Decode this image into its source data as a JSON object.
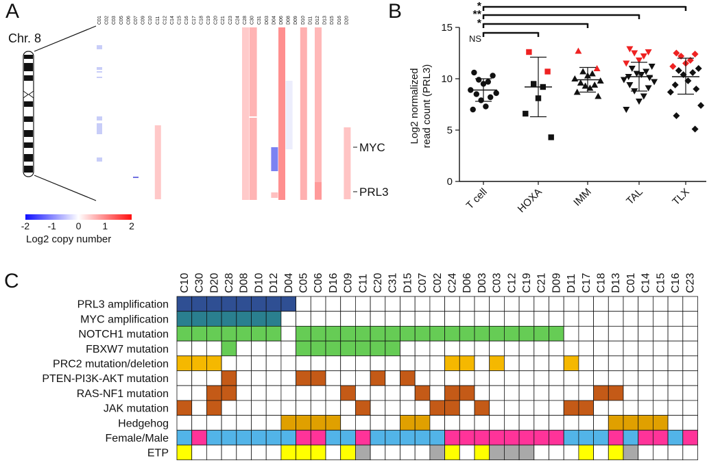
{
  "colors": {
    "neg": "#2b2bff",
    "pos": "#ff2020",
    "amp_prl3": "#2f4f93",
    "amp_myc": "#2a7f8f",
    "notch": "#66cc55",
    "fbxw7": "#66cc55",
    "prc2": "#f5b800",
    "pten": "#c45a17",
    "ras": "#c45a17",
    "jak": "#c45a17",
    "hedgehog": "#e0a000",
    "female": "#ff3399",
    "male": "#52b4e8",
    "etp_yes": "#ffff00",
    "etp_gray": "#a9a9a9",
    "red_point": "#ee2222"
  },
  "panelA": {
    "panel_letter": "A",
    "chromosome_label": "Chr. 8",
    "gene_labels": [
      "MYC",
      "PRL3"
    ],
    "samples": [
      "C01",
      "C02",
      "C03",
      "C05",
      "C06",
      "C07",
      "C09",
      "C10",
      "C11",
      "C12",
      "C14",
      "C15",
      "C16",
      "C17",
      "C18",
      "C19",
      "C20",
      "C21",
      "C23",
      "C24",
      "C28",
      "C30",
      "C31",
      "D03",
      "D04",
      "D06",
      "D08",
      "D09",
      "D10",
      "D11",
      "D12",
      "D13",
      "D15",
      "D16",
      "D20"
    ],
    "legend": {
      "ticks": [
        "-2",
        "-1",
        "0",
        "1",
        "2"
      ],
      "title": "Log2 copy number"
    }
  },
  "panelB": {
    "panel_letter": "B",
    "chart_data": {
      "type": "scatter",
      "ylabel_line1": "Log2 normalized",
      "ylabel_line2": "read count (PRL3)",
      "ylim": [
        0,
        15
      ],
      "yticks": [
        "0",
        "5",
        "10",
        "15"
      ],
      "categories": [
        "T cell",
        "HOXA",
        "IMM",
        "TAL",
        "TLX"
      ],
      "markers": [
        "circle",
        "square",
        "triangle-up",
        "triangle-down",
        "diamond"
      ],
      "means": [
        8.9,
        9.2,
        9.9,
        10.2,
        10.2
      ],
      "sd_low": [
        7.8,
        6.3,
        8.7,
        8.8,
        8.5
      ],
      "sd_high": [
        10.0,
        12.1,
        11.1,
        11.6,
        12.0
      ],
      "points": [
        [
          {
            "y": 10.6
          },
          {
            "y": 10.3
          },
          {
            "y": 9.9
          },
          {
            "y": 9.7
          },
          {
            "y": 9.5
          },
          {
            "y": 8.9
          },
          {
            "y": 8.6
          },
          {
            "y": 8.5
          },
          {
            "y": 8.2
          },
          {
            "y": 7.9
          },
          {
            "y": 7.3
          },
          {
            "y": 7.0
          }
        ],
        [
          {
            "y": 12.6,
            "red": true
          },
          {
            "y": 10.7,
            "red": true
          },
          {
            "y": 9.5
          },
          {
            "y": 9.2
          },
          {
            "y": 8.1
          },
          {
            "y": 6.6
          },
          {
            "y": 4.3
          }
        ],
        [
          {
            "y": 12.7,
            "red": true
          },
          {
            "y": 11.0,
            "red": true
          },
          {
            "y": 10.7
          },
          {
            "y": 10.5
          },
          {
            "y": 10.3
          },
          {
            "y": 10.0
          },
          {
            "y": 9.8
          },
          {
            "y": 9.6
          },
          {
            "y": 9.4
          },
          {
            "y": 9.3
          },
          {
            "y": 9.1
          },
          {
            "y": 8.7
          },
          {
            "y": 8.3
          }
        ],
        [
          {
            "y": 12.9,
            "red": true
          },
          {
            "y": 12.6,
            "red": true
          },
          {
            "y": 12.5,
            "red": true
          },
          {
            "y": 12.2,
            "red": true
          },
          {
            "y": 11.8,
            "red": true
          },
          {
            "y": 11.5,
            "red": true
          },
          {
            "y": 11.2
          },
          {
            "y": 11.0
          },
          {
            "y": 10.7
          },
          {
            "y": 10.5
          },
          {
            "y": 10.4
          },
          {
            "y": 10.2
          },
          {
            "y": 10.1
          },
          {
            "y": 9.9
          },
          {
            "y": 9.7
          },
          {
            "y": 9.4
          },
          {
            "y": 9.1
          },
          {
            "y": 8.8
          },
          {
            "y": 8.3
          },
          {
            "y": 7.8
          },
          {
            "y": 7.0
          }
        ],
        [
          {
            "y": 12.5,
            "red": true
          },
          {
            "y": 12.4,
            "red": true
          },
          {
            "y": 12.2,
            "red": true
          },
          {
            "y": 11.8,
            "red": true
          },
          {
            "y": 11.5,
            "red": true
          },
          {
            "y": 11.2,
            "red": true
          },
          {
            "y": 11.0
          },
          {
            "y": 10.8
          },
          {
            "y": 10.6
          },
          {
            "y": 10.4
          },
          {
            "y": 9.8
          },
          {
            "y": 9.4
          },
          {
            "y": 9.0
          },
          {
            "y": 8.7
          },
          {
            "y": 7.4
          },
          {
            "y": 6.4
          },
          {
            "y": 5.1
          }
        ]
      ],
      "significance": [
        {
          "to": "TLX",
          "label": "*"
        },
        {
          "to": "TAL",
          "label": "**"
        },
        {
          "to": "IMM",
          "label": "*"
        },
        {
          "to": "HOXA",
          "label": "NS"
        }
      ]
    }
  },
  "panelC": {
    "panel_letter": "C",
    "chart_data": {
      "type": "heatmap",
      "columns": [
        "C10",
        "C30",
        "D20",
        "C28",
        "D08",
        "D10",
        "D12",
        "D04",
        "C05",
        "C06",
        "D16",
        "C09",
        "C11",
        "C20",
        "C31",
        "D15",
        "C07",
        "C02",
        "C24",
        "D06",
        "D03",
        "C03",
        "C12",
        "C19",
        "C21",
        "D09",
        "D11",
        "C17",
        "C18",
        "D13",
        "C01",
        "C14",
        "C15",
        "C16",
        "C23"
      ],
      "rows": [
        {
          "label": "PRL3 amplification",
          "color": "amp_prl3",
          "cells": [
            1,
            1,
            1,
            1,
            1,
            1,
            1,
            1,
            0,
            0,
            0,
            0,
            0,
            0,
            0,
            0,
            0,
            0,
            0,
            0,
            0,
            0,
            0,
            0,
            0,
            0,
            0,
            0,
            0,
            0,
            0,
            0,
            0,
            0,
            0
          ]
        },
        {
          "label": "MYC amplification",
          "color": "amp_myc",
          "cells": [
            1,
            1,
            1,
            1,
            1,
            1,
            1,
            0,
            0,
            0,
            0,
            0,
            0,
            0,
            0,
            0,
            0,
            0,
            0,
            0,
            0,
            0,
            0,
            0,
            0,
            0,
            0,
            0,
            0,
            0,
            0,
            0,
            0,
            0,
            0
          ]
        },
        {
          "label": "NOTCH1 mutation",
          "color": "notch",
          "cells": [
            1,
            1,
            1,
            1,
            1,
            1,
            1,
            0,
            1,
            1,
            1,
            1,
            1,
            1,
            1,
            1,
            1,
            1,
            1,
            1,
            1,
            1,
            1,
            1,
            1,
            1,
            0,
            0,
            0,
            0,
            0,
            0,
            0,
            0,
            0
          ]
        },
        {
          "label": "FBXW7 mutation",
          "color": "fbxw7",
          "cells": [
            0,
            0,
            0,
            1,
            0,
            0,
            0,
            0,
            1,
            1,
            1,
            1,
            1,
            1,
            1,
            0,
            0,
            0,
            0,
            0,
            0,
            0,
            0,
            0,
            0,
            0,
            0,
            0,
            0,
            0,
            0,
            0,
            0,
            0,
            0
          ]
        },
        {
          "label": "PRC2 mutation/deletion",
          "color": "prc2",
          "cells": [
            1,
            1,
            1,
            0,
            0,
            0,
            0,
            0,
            0,
            0,
            0,
            0,
            0,
            0,
            0,
            0,
            0,
            0,
            1,
            1,
            0,
            1,
            0,
            0,
            0,
            0,
            1,
            0,
            0,
            0,
            0,
            0,
            0,
            0,
            0
          ]
        },
        {
          "label": "PTEN-PI3K-AKT mutation",
          "color": "pten",
          "cells": [
            0,
            0,
            0,
            1,
            0,
            0,
            0,
            0,
            1,
            1,
            0,
            0,
            0,
            1,
            0,
            1,
            0,
            0,
            0,
            0,
            0,
            0,
            0,
            0,
            0,
            0,
            0,
            0,
            0,
            0,
            0,
            0,
            0,
            0,
            0
          ]
        },
        {
          "label": "RAS-NF1 mutation",
          "color": "ras",
          "cells": [
            0,
            0,
            1,
            1,
            0,
            0,
            0,
            0,
            0,
            0,
            0,
            1,
            0,
            0,
            0,
            0,
            1,
            0,
            1,
            1,
            0,
            0,
            0,
            0,
            0,
            0,
            0,
            0,
            1,
            1,
            0,
            0,
            0,
            0,
            0
          ]
        },
        {
          "label": "JAK mutation",
          "color": "jak",
          "cells": [
            1,
            0,
            1,
            0,
            0,
            0,
            0,
            0,
            0,
            0,
            0,
            0,
            1,
            0,
            0,
            0,
            0,
            1,
            1,
            0,
            1,
            0,
            0,
            0,
            0,
            0,
            1,
            1,
            0,
            0,
            0,
            0,
            0,
            0,
            0
          ]
        },
        {
          "label": "Hedgehog",
          "color": "hedgehog",
          "cells": [
            0,
            0,
            0,
            0,
            0,
            0,
            0,
            1,
            1,
            1,
            1,
            0,
            0,
            0,
            0,
            1,
            1,
            0,
            0,
            0,
            0,
            0,
            0,
            0,
            0,
            0,
            0,
            0,
            0,
            1,
            1,
            1,
            1,
            0,
            0
          ]
        },
        {
          "label": "Female/Male",
          "colors": [
            "male",
            "female"
          ],
          "cells": [
            0,
            1,
            0,
            0,
            0,
            0,
            0,
            0,
            1,
            1,
            0,
            0,
            1,
            0,
            0,
            0,
            0,
            0,
            1,
            1,
            1,
            1,
            1,
            1,
            1,
            1,
            0,
            0,
            0,
            1,
            0,
            1,
            1,
            0,
            1
          ]
        },
        {
          "label": "ETP",
          "colors": [
            "none",
            "etp_yes",
            "etp_gray"
          ],
          "cells": [
            1,
            0,
            0,
            0,
            0,
            0,
            0,
            1,
            1,
            1,
            0,
            1,
            2,
            0,
            0,
            0,
            0,
            2,
            1,
            0,
            1,
            2,
            2,
            2,
            0,
            0,
            0,
            1,
            0,
            1,
            2,
            0,
            0,
            0,
            0
          ]
        }
      ]
    }
  }
}
